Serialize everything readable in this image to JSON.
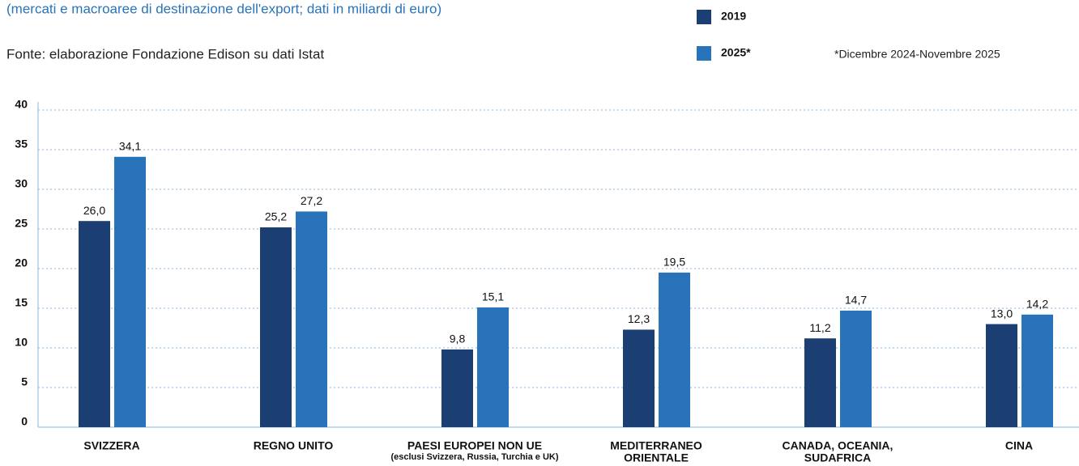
{
  "chart_data": {
    "type": "bar",
    "subtitle": "(mercati e macroaree di destinazione dell'export; dati in miliardi di euro)",
    "source": "Fonte: elaborazione Fondazione Edison su dati Istat",
    "note": "*Dicembre 2024-Novembre 2025",
    "categories": [
      [
        "SVIZZERA"
      ],
      [
        "REGNO UNITO"
      ],
      [
        "PAESI EUROPEI NON UE",
        "(esclusi Svizzera, Russia, Turchia e UK)"
      ],
      [
        "MEDITERRANEO",
        "ORIENTALE"
      ],
      [
        "CANADA, OCEANIA,",
        "SUDAFRICA"
      ],
      [
        "CINA"
      ]
    ],
    "series": [
      {
        "name": "2019",
        "color": "#1b3f73",
        "values": [
          26.0,
          25.2,
          9.8,
          12.3,
          11.2,
          13.0
        ],
        "value_labels": [
          "26,0",
          "25,2",
          "9,8",
          "12,3",
          "11,2",
          "13,0"
        ]
      },
      {
        "name": "2025*",
        "color": "#2873b9",
        "values": [
          34.1,
          27.2,
          15.1,
          19.5,
          14.7,
          14.2
        ],
        "value_labels": [
          "34,1",
          "27,2",
          "15,1",
          "19,5",
          "14,7",
          "14,2"
        ]
      }
    ],
    "ylim": [
      0,
      40
    ],
    "yticks": [
      0,
      5,
      10,
      15,
      20,
      25,
      30,
      35,
      40
    ],
    "grid": true
  }
}
